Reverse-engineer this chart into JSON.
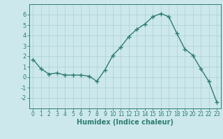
{
  "x": [
    0,
    1,
    2,
    3,
    4,
    5,
    6,
    7,
    8,
    9,
    10,
    11,
    12,
    13,
    14,
    15,
    16,
    17,
    18,
    19,
    20,
    21,
    22,
    23
  ],
  "y": [
    1.7,
    0.8,
    0.3,
    0.4,
    0.2,
    0.2,
    0.2,
    0.1,
    -0.4,
    0.7,
    2.1,
    2.9,
    3.9,
    4.6,
    5.1,
    5.8,
    6.1,
    5.8,
    4.2,
    2.7,
    2.1,
    0.8,
    -0.4,
    -2.4
  ],
  "line_color": "#2e7d6e",
  "marker": "+",
  "markersize": 4,
  "linewidth": 1.0,
  "markeredgewidth": 1.0,
  "xlabel": "Humidex (Indice chaleur)",
  "xlabel_fontsize": 7,
  "xlabel_fontweight": "bold",
  "bg_color": "#cce8ec",
  "grid_color": "#aacfd4",
  "tick_color": "#2e7d6e",
  "spine_color": "#2e7d6e",
  "ylim": [
    -3,
    7
  ],
  "xlim": [
    -0.5,
    23.5
  ],
  "yticks": [
    -2,
    -1,
    0,
    1,
    2,
    3,
    4,
    5,
    6
  ],
  "xticks": [
    0,
    1,
    2,
    3,
    4,
    5,
    6,
    7,
    8,
    9,
    10,
    11,
    12,
    13,
    14,
    15,
    16,
    17,
    18,
    19,
    20,
    21,
    22,
    23
  ],
  "tick_fontsize": 5.5,
  "ytick_fontsize": 6
}
